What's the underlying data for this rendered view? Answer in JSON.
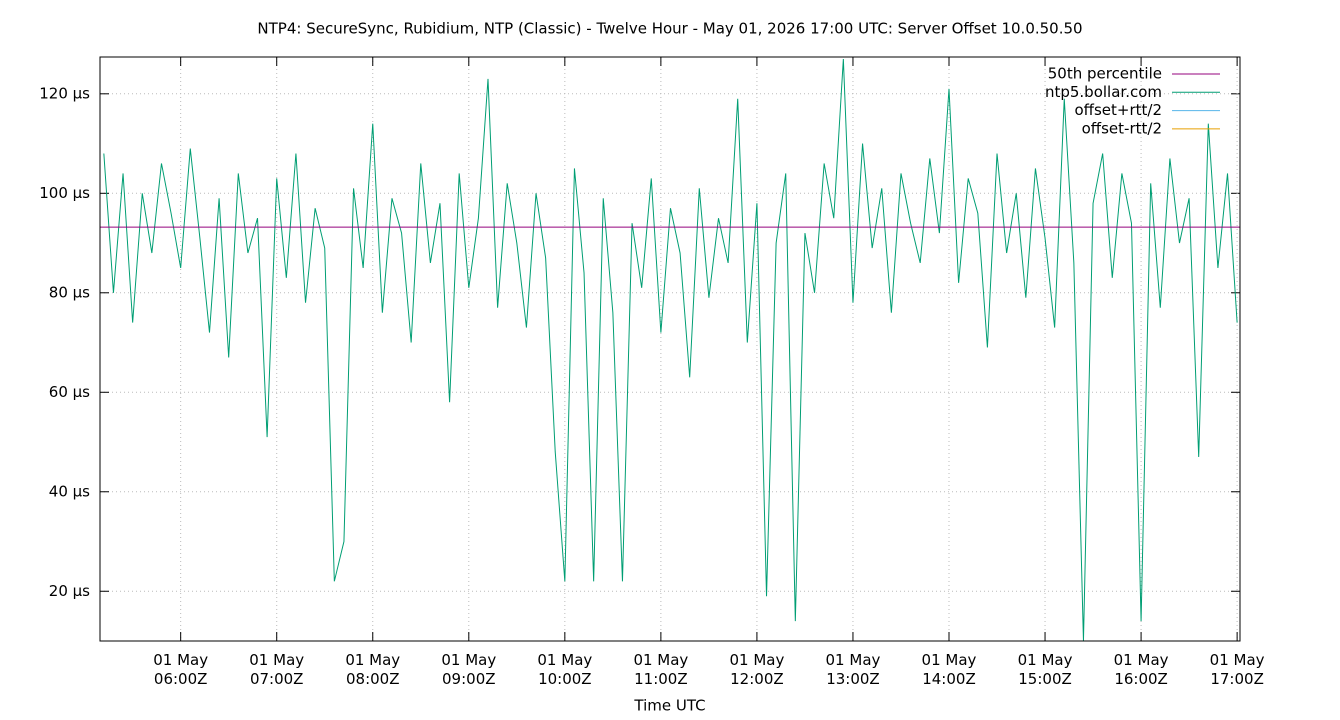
{
  "chart_data": {
    "type": "line",
    "title": "NTP4: SecureSync, Rubidium, NTP (Classic) - Twelve Hour - May 01, 2026 17:00 UTC: Server Offset 10.0.50.50",
    "x_label": "Time UTC",
    "xlim": [
      5.16,
      17.03
    ],
    "ylim": [
      10,
      127.4
    ],
    "xticks": [
      {
        "value": 6,
        "label": "01 May\n06:00Z"
      },
      {
        "value": 7,
        "label": "01 May\n07:00Z"
      },
      {
        "value": 8,
        "label": "01 May\n08:00Z"
      },
      {
        "value": 9,
        "label": "01 May\n09:00Z"
      },
      {
        "value": 10,
        "label": "01 May\n10:00Z"
      },
      {
        "value": 11,
        "label": "01 May\n11:00Z"
      },
      {
        "value": 12,
        "label": "01 May\n12:00Z"
      },
      {
        "value": 13,
        "label": "01 May\n13:00Z"
      },
      {
        "value": 14,
        "label": "01 May\n14:00Z"
      },
      {
        "value": 15,
        "label": "01 May\n15:00Z"
      },
      {
        "value": 16,
        "label": "01 May\n16:00Z"
      },
      {
        "value": 17,
        "label": "01 May\n17:00Z"
      }
    ],
    "yticks": [
      {
        "value": 20,
        "label": "20 µs"
      },
      {
        "value": 40,
        "label": "40 µs"
      },
      {
        "value": 60,
        "label": "60 µs"
      },
      {
        "value": 80,
        "label": "80 µs"
      },
      {
        "value": 100,
        "label": "100 µs"
      },
      {
        "value": 120,
        "label": "120 µs"
      }
    ],
    "grid": true,
    "legend": "top-right",
    "series": [
      {
        "name": "50th percentile",
        "color": "#94007d",
        "x": [
          5.16,
          17.03
        ],
        "values": [
          93.2,
          93.2
        ]
      },
      {
        "name": "ntp5.bollar.com",
        "color": "#009e73",
        "x": [
          5.2,
          5.3,
          5.4,
          5.5,
          5.6,
          5.7,
          5.8,
          5.9,
          6.0,
          6.1,
          6.2,
          6.3,
          6.4,
          6.5,
          6.6,
          6.7,
          6.8,
          6.9,
          7.0,
          7.1,
          7.2,
          7.3,
          7.4,
          7.5,
          7.6,
          7.7,
          7.8,
          7.9,
          8.0,
          8.1,
          8.2,
          8.3,
          8.4,
          8.5,
          8.6,
          8.7,
          8.8,
          8.9,
          9.0,
          9.1,
          9.2,
          9.3,
          9.4,
          9.5,
          9.6,
          9.7,
          9.8,
          9.9,
          10.0,
          10.1,
          10.2,
          10.3,
          10.4,
          10.5,
          10.6,
          10.7,
          10.8,
          10.9,
          11.0,
          11.1,
          11.2,
          11.3,
          11.4,
          11.5,
          11.6,
          11.7,
          11.8,
          11.9,
          12.0,
          12.1,
          12.2,
          12.3,
          12.4,
          12.5,
          12.6,
          12.7,
          12.8,
          12.9,
          13.0,
          13.1,
          13.2,
          13.3,
          13.4,
          13.5,
          13.6,
          13.7,
          13.8,
          13.9,
          14.0,
          14.1,
          14.2,
          14.3,
          14.4,
          14.5,
          14.6,
          14.7,
          14.8,
          14.9,
          15.0,
          15.1,
          15.2,
          15.3,
          15.4,
          15.5,
          15.6,
          15.7,
          15.8,
          15.9,
          16.0,
          16.1,
          16.2,
          16.3,
          16.4,
          16.5,
          16.6,
          16.7,
          16.8,
          16.9,
          17.0
        ],
        "values": [
          108,
          80,
          104,
          74,
          100,
          88,
          106,
          96,
          85,
          109,
          91,
          72,
          99,
          67,
          104,
          88,
          95,
          51,
          103,
          83,
          108,
          78,
          97,
          89,
          22,
          30,
          101,
          85,
          114,
          76,
          99,
          92,
          70,
          106,
          86,
          98,
          58,
          104,
          81,
          95,
          123,
          77,
          102,
          90,
          73,
          100,
          87,
          48,
          22,
          105,
          84,
          22,
          99,
          76,
          22,
          94,
          81,
          103,
          72,
          97,
          88,
          63,
          101,
          79,
          95,
          86,
          119,
          70,
          98,
          19,
          90,
          104,
          14,
          92,
          80,
          106,
          95,
          127,
          78,
          110,
          89,
          101,
          76,
          104,
          94,
          86,
          107,
          92,
          121,
          82,
          103,
          96,
          69,
          108,
          88,
          100,
          79,
          105,
          91,
          73,
          119,
          86,
          10,
          98,
          108,
          83,
          104,
          94,
          14,
          102,
          77,
          107,
          90,
          99,
          47,
          114,
          85,
          104,
          74
        ]
      },
      {
        "name": "offset+rtt/2",
        "color": "#56b4e9",
        "x": [],
        "values": []
      },
      {
        "name": "offset-rtt/2",
        "color": "#e69f00",
        "x": [],
        "values": []
      }
    ]
  }
}
